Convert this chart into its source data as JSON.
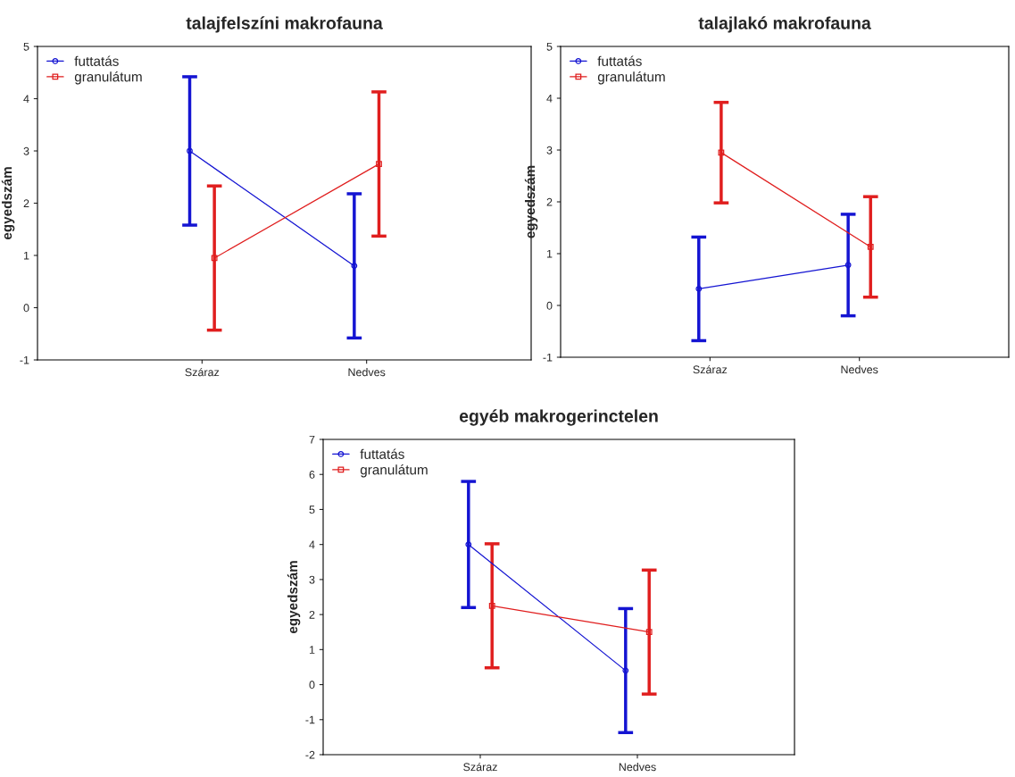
{
  "chart_data": [
    {
      "type": "line",
      "title": "talajfelszíni makrofauna",
      "ylabel": "egyedszám",
      "categories": [
        "Száraz",
        "Nedves"
      ],
      "ylim": [
        -1,
        5
      ],
      "yticks": [
        -1,
        0,
        1,
        2,
        3,
        4,
        5
      ],
      "legend": "top left",
      "grid": false,
      "series": [
        {
          "name": "futtatás",
          "color": "#1414d2",
          "marker": "circle",
          "values": [
            3.0,
            0.8
          ],
          "errors": [
            1.42,
            1.38
          ]
        },
        {
          "name": "granulátum",
          "color": "#e01e1e",
          "marker": "square",
          "values": [
            0.95,
            2.75
          ],
          "errors": [
            1.38,
            1.38
          ]
        }
      ]
    },
    {
      "type": "line",
      "title": "talajlakó makrofauna",
      "ylabel": "egyedszám",
      "categories": [
        "Száraz",
        "Nedves"
      ],
      "ylim": [
        -1,
        5
      ],
      "yticks": [
        -1,
        0,
        1,
        2,
        3,
        4,
        5
      ],
      "legend": "top left",
      "grid": false,
      "series": [
        {
          "name": "futtatás",
          "color": "#1414d2",
          "marker": "circle",
          "values": [
            0.32,
            0.78
          ],
          "errors": [
            1.0,
            0.98
          ]
        },
        {
          "name": "granulátum",
          "color": "#e01e1e",
          "marker": "square",
          "values": [
            2.95,
            1.13
          ],
          "errors": [
            0.97,
            0.97
          ]
        }
      ]
    },
    {
      "type": "line",
      "title": "egyéb makrogerinctelen",
      "ylabel": "egyedszám",
      "categories": [
        "Száraz",
        "Nedves"
      ],
      "ylim": [
        -2,
        7
      ],
      "yticks": [
        -2,
        -1,
        0,
        1,
        2,
        3,
        4,
        5,
        6,
        7
      ],
      "legend": "top left",
      "grid": false,
      "series": [
        {
          "name": "futtatás",
          "color": "#1414d2",
          "marker": "circle",
          "values": [
            4.0,
            0.4
          ],
          "errors": [
            1.8,
            1.77
          ]
        },
        {
          "name": "granulátum",
          "color": "#e01e1e",
          "marker": "square",
          "values": [
            2.25,
            1.5
          ],
          "errors": [
            1.77,
            1.77
          ]
        }
      ]
    }
  ]
}
